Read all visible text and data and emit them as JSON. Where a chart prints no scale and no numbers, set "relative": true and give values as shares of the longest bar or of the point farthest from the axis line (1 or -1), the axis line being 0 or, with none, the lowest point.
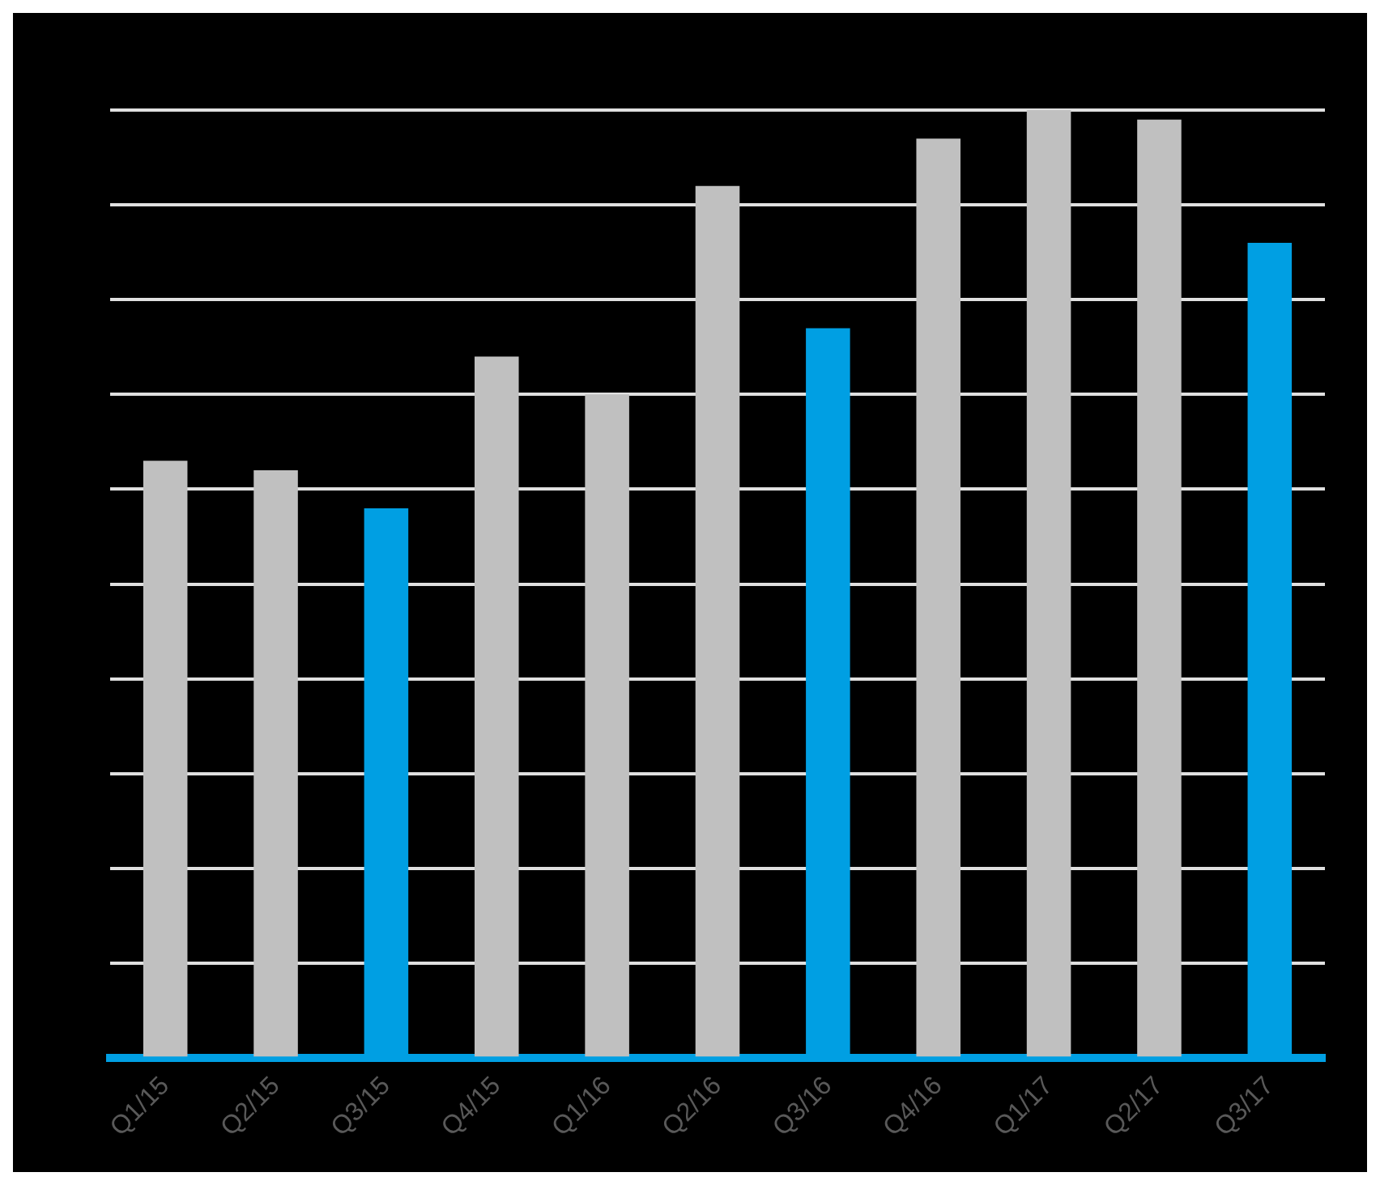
{
  "chart_data": {
    "type": "bar",
    "relative": true,
    "grid": true,
    "categories": [
      "Q1/15",
      "Q2/15",
      "Q3/15",
      "Q4/15",
      "Q1/16",
      "Q2/16",
      "Q3/16",
      "Q4/16",
      "Q1/17",
      "Q2/17",
      "Q3/17"
    ],
    "values": [
      0.63,
      0.62,
      0.58,
      0.74,
      0.7,
      0.92,
      0.77,
      0.97,
      1,
      0.99,
      0.86
    ],
    "colors": [
      "#c0c0c0",
      "#c0c0c0",
      "#009fe3",
      "#c0c0c0",
      "#c0c0c0",
      "#c0c0c0",
      "#009fe3",
      "#c0c0c0",
      "#c0c0c0",
      "#c0c0c0",
      "#009fe3"
    ]
  }
}
